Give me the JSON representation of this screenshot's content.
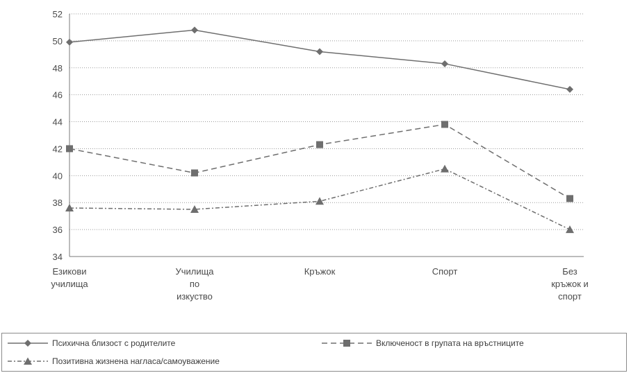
{
  "chart_data": {
    "type": "line",
    "title": "",
    "xlabel": "",
    "ylabel": "",
    "categories": [
      [
        "Езикови",
        "училища"
      ],
      [
        "Училища",
        "по",
        "изкуство"
      ],
      [
        "Кръжок"
      ],
      [
        "Спорт"
      ],
      [
        "Без",
        "кръжок и",
        "спорт"
      ]
    ],
    "ylim": [
      34,
      52
    ],
    "yticks": [
      34,
      36,
      38,
      40,
      42,
      44,
      46,
      48,
      50,
      52
    ],
    "grid": "horizontal",
    "legend_position": "bottom",
    "series": [
      {
        "name": "Психична близост с родителите",
        "values": [
          49.9,
          50.8,
          49.2,
          48.3,
          46.4
        ],
        "marker": "diamond",
        "dash": "solid",
        "color": "#6e6e6e"
      },
      {
        "name": "Включеност в групата на връстниците",
        "values": [
          42.0,
          40.2,
          42.3,
          43.8,
          38.3
        ],
        "marker": "square",
        "dash": "dashed",
        "color": "#6e6e6e"
      },
      {
        "name": "Позитивна жизнена нагласа/самоуважение",
        "values": [
          37.6,
          37.5,
          38.1,
          40.5,
          36.0
        ],
        "marker": "triangle",
        "dash": "dashdot",
        "color": "#6e6e6e"
      }
    ]
  }
}
